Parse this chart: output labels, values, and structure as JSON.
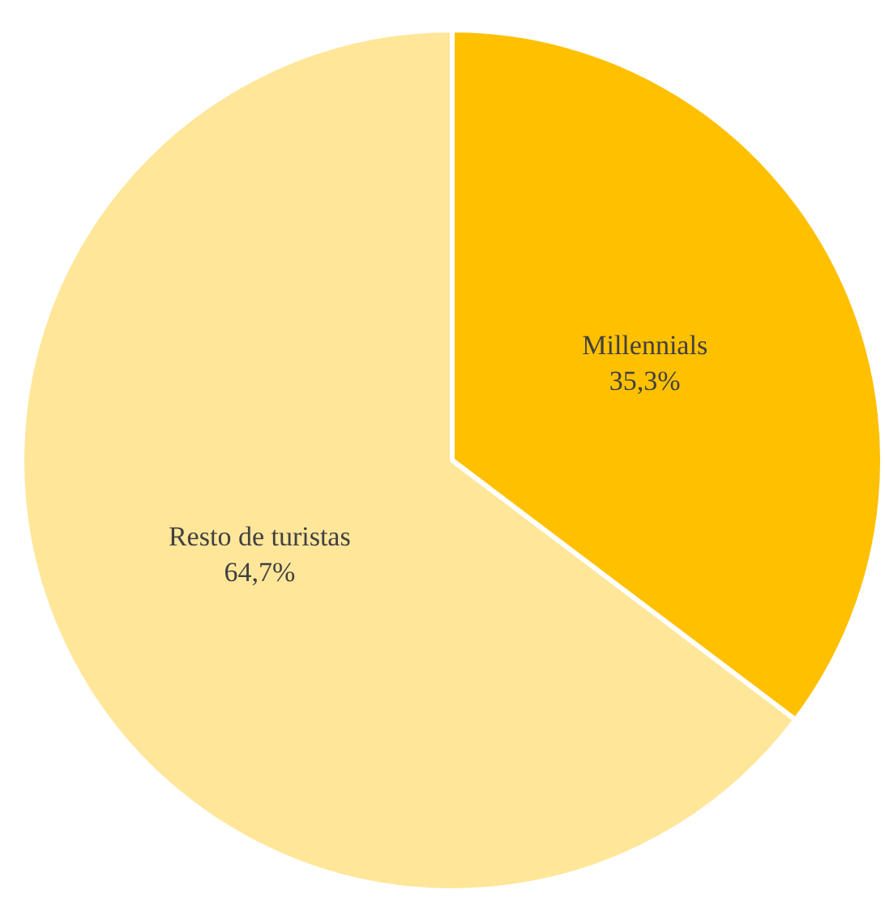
{
  "chart_data": {
    "type": "pie",
    "categories": [
      "Millennials",
      "Resto de turistas"
    ],
    "values": [
      35.3,
      64.7
    ],
    "colors": [
      "#ffc000",
      "#ffe699"
    ],
    "value_labels": [
      "35,3%",
      "64,7%"
    ]
  }
}
